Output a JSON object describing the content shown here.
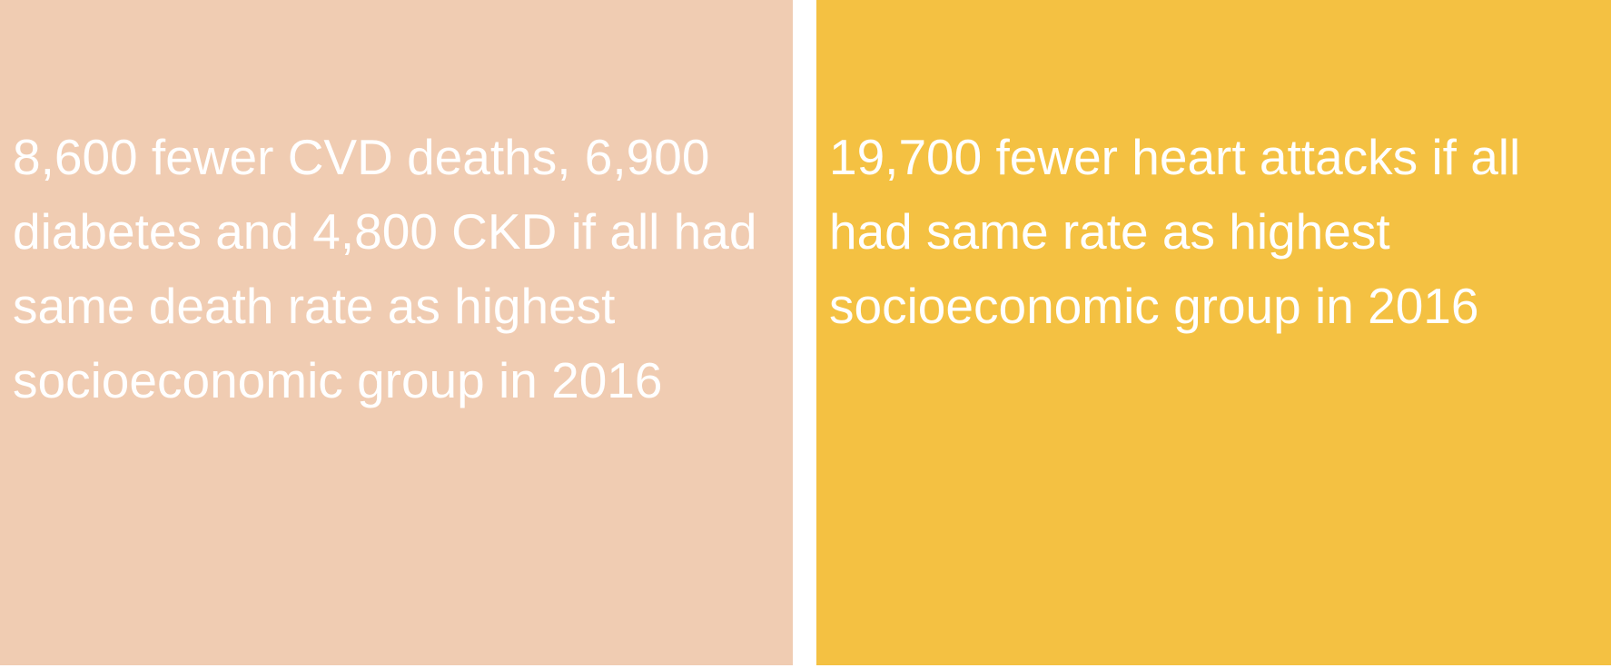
{
  "tiles": [
    {
      "text": "8,600 fewer CVD deaths, 6,900 diabetes and 4,800 CKD if all had same death rate as highest socioeconomic group in 2016",
      "color": "#F0CCB2"
    },
    {
      "text": "19,700 fewer heart attacks if all had same rate as highest socioeconomic group in 2016",
      "color": "#F4C142"
    }
  ]
}
